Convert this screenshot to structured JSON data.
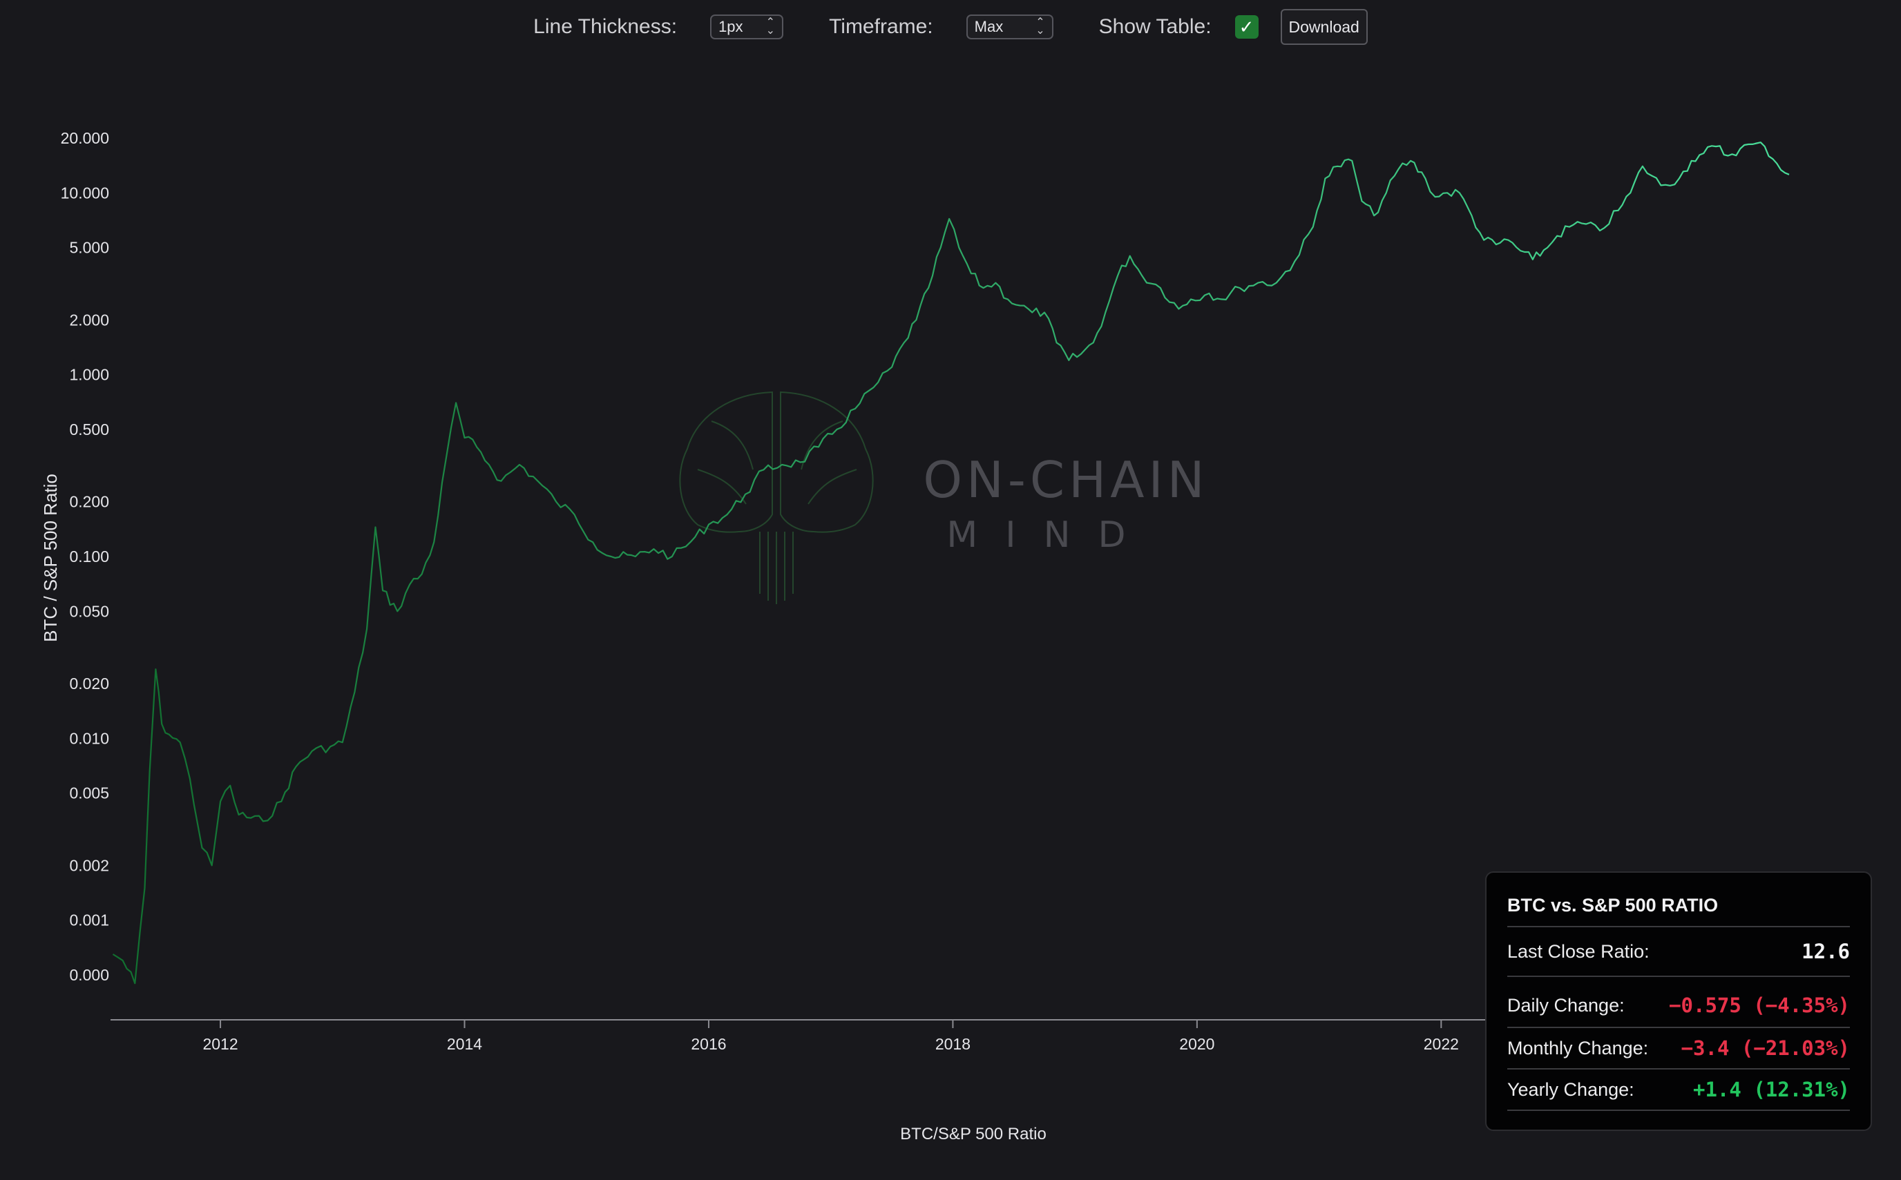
{
  "controls": {
    "line_thickness_label": "Line Thickness:",
    "line_thickness_value": "1px",
    "timeframe_label": "Timeframe:",
    "timeframe_value": "Max",
    "show_table_label": "Show Table:",
    "show_table_checked": true,
    "download_label": "Download"
  },
  "watermark": {
    "line1": "ON-CHAIN",
    "line2": "MIND"
  },
  "stats": {
    "title": "BTC vs. S&P 500 RATIO",
    "last_close_label": "Last Close Ratio:",
    "last_close_value": "12.6",
    "daily_label": "Daily Change:",
    "daily_value": "−0.575 (−4.35%)",
    "monthly_label": "Monthly Change:",
    "monthly_value": "−3.4 (−21.03%)",
    "yearly_label": "Yearly Change:",
    "yearly_value": "+1.4 (12.31%)",
    "colors": {
      "negative": "#e8334a",
      "positive": "#22c55e"
    }
  },
  "chart_data": {
    "type": "line",
    "xlabel": "BTC/S&P 500 Ratio",
    "ylabel": "BTC / S&P 500 Ratio",
    "y_scale": "log",
    "xlim": [
      2011.1,
      2024.85
    ],
    "x_ticks": [
      2012,
      2014,
      2016,
      2018,
      2020,
      2022
    ],
    "x_tick_labels": [
      "2012",
      "2014",
      "2016",
      "2018",
      "2020",
      "2022"
    ],
    "y_ticks": [
      0.0005,
      0.001,
      0.002,
      0.005,
      0.01,
      0.02,
      0.05,
      0.1,
      0.2,
      0.5,
      1,
      2,
      5,
      10,
      20
    ],
    "y_tick_labels": [
      "0.000",
      "0.001",
      "0.002",
      "0.005",
      "0.010",
      "0.020",
      "0.050",
      "0.100",
      "0.200",
      "0.500",
      "1.000",
      "2.000",
      "5.000",
      "10.000",
      "20.000"
    ],
    "colors": {
      "line_start": "#116f2f",
      "line_end": "#4ade9a",
      "axis": "#8a8a90",
      "text": "#e6e6ea"
    },
    "series": [
      {
        "x": [
          2011.12,
          2011.2,
          2011.3,
          2011.38,
          2011.42,
          2011.47,
          2011.52,
          2011.58,
          2011.67,
          2011.75,
          2011.85,
          2011.93,
          2012.0,
          2012.08,
          2012.15,
          2012.35,
          2012.5,
          2012.62,
          2012.75,
          2012.9,
          2013.0,
          2013.1,
          2013.2,
          2013.27,
          2013.33,
          2013.45,
          2013.55,
          2013.65,
          2013.75,
          2013.85,
          2013.93,
          2014.0,
          2014.1,
          2014.2,
          2014.3,
          2014.45,
          2014.6,
          2014.75,
          2014.9,
          2015.05,
          2015.2,
          2015.4,
          2015.55,
          2015.7,
          2015.85,
          2016.0,
          2016.15,
          2016.3,
          2016.45,
          2016.6,
          2016.75,
          2016.9,
          2017.05,
          2017.2,
          2017.35,
          2017.5,
          2017.6,
          2017.7,
          2017.8,
          2017.9,
          2017.97,
          2018.05,
          2018.15,
          2018.25,
          2018.35,
          2018.45,
          2018.55,
          2018.65,
          2018.75,
          2018.85,
          2018.95,
          2019.05,
          2019.15,
          2019.25,
          2019.35,
          2019.45,
          2019.55,
          2019.7,
          2019.85,
          2019.95,
          2020.1,
          2020.2,
          2020.35,
          2020.5,
          2020.65,
          2020.8,
          2020.95,
          2021.05,
          2021.15,
          2021.27,
          2021.35,
          2021.45,
          2021.55,
          2021.65,
          2021.75,
          2021.87,
          2021.95,
          2022.05,
          2022.15,
          2022.25,
          2022.35,
          2022.45,
          2022.55,
          2022.65,
          2022.75,
          2022.87,
          2022.95,
          2023.05,
          2023.15,
          2023.3,
          2023.45,
          2023.55,
          2023.65,
          2023.8,
          2023.95,
          2024.05,
          2024.15,
          2024.25,
          2024.35,
          2024.45,
          2024.55,
          2024.65,
          2024.75,
          2024.85
        ],
        "values": [
          0.00065,
          0.0006,
          0.00045,
          0.0015,
          0.0065,
          0.024,
          0.012,
          0.0105,
          0.0095,
          0.006,
          0.0025,
          0.002,
          0.0045,
          0.0055,
          0.0038,
          0.0035,
          0.0045,
          0.007,
          0.0085,
          0.009,
          0.0095,
          0.018,
          0.04,
          0.145,
          0.065,
          0.05,
          0.07,
          0.08,
          0.12,
          0.35,
          0.7,
          0.45,
          0.4,
          0.32,
          0.26,
          0.32,
          0.26,
          0.2,
          0.17,
          0.12,
          0.1,
          0.1,
          0.11,
          0.1,
          0.12,
          0.15,
          0.17,
          0.22,
          0.3,
          0.32,
          0.33,
          0.4,
          0.5,
          0.65,
          0.85,
          1.1,
          1.5,
          2.0,
          3.0,
          5.0,
          7.2,
          5.0,
          3.6,
          3.0,
          3.2,
          2.6,
          2.4,
          2.2,
          2.2,
          1.5,
          1.2,
          1.3,
          1.5,
          2.2,
          3.5,
          4.5,
          3.5,
          3.0,
          2.3,
          2.6,
          2.8,
          2.6,
          3.0,
          3.2,
          3.2,
          4.2,
          6.5,
          12.0,
          14.0,
          15.0,
          9.0,
          7.5,
          10.0,
          13.5,
          15.0,
          12.0,
          9.5,
          10.0,
          10.0,
          7.5,
          5.5,
          5.2,
          5.5,
          4.8,
          4.3,
          5.0,
          5.8,
          6.5,
          6.8,
          6.2,
          8.0,
          10.0,
          14.0,
          11.0,
          12.0,
          15.0,
          16.5,
          18.0,
          16.0,
          17.5,
          18.5,
          18.0,
          14.5,
          12.6
        ]
      }
    ]
  }
}
